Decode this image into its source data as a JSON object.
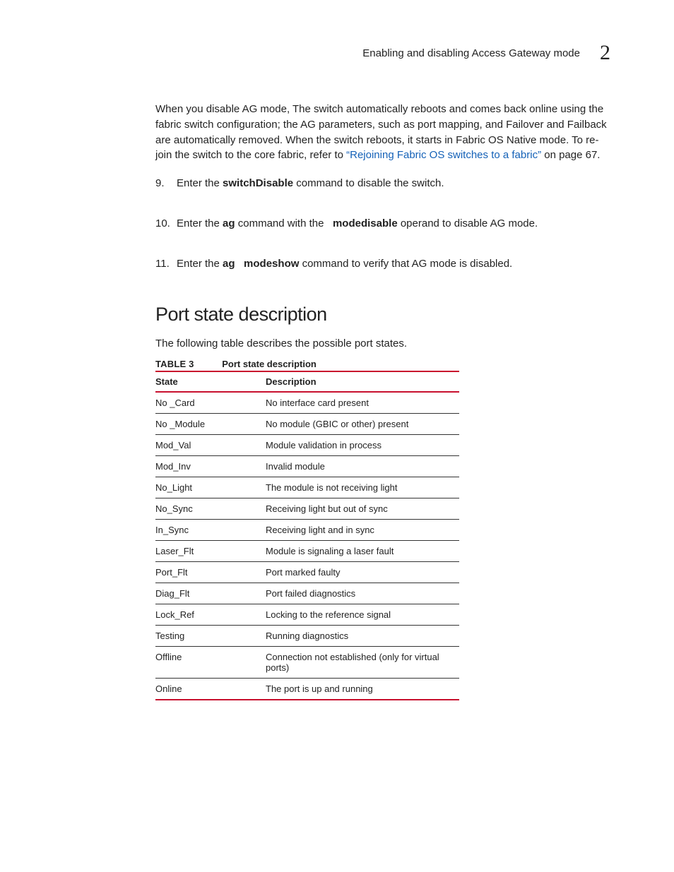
{
  "colors": {
    "rule": "#c8102e",
    "link": "#1461b7",
    "text": "#222222",
    "background": "#ffffff"
  },
  "header": {
    "running_title": "Enabling and disabling Access Gateway mode",
    "chapter_number": "2"
  },
  "intro_para": {
    "pre": "When you disable AG mode, The switch automatically reboots and comes back online using the fabric switch configuration; the AG parameters, such as port mapping, and Failover and Failback are automatically removed. When the switch reboots, it starts in Fabric OS Native mode. To re-join the switch to the core fabric, refer to ",
    "link_text": "“Rejoining Fabric OS switches to a fabric”",
    "post": " on page 67."
  },
  "steps": [
    {
      "num": "9.",
      "parts": [
        {
          "t": "Enter the "
        },
        {
          "t": "switchDisable",
          "bold": true
        },
        {
          "t": " command to disable the switch."
        }
      ]
    },
    {
      "num": "10.",
      "parts": [
        {
          "t": "Enter the "
        },
        {
          "t": "ag",
          "bold": true
        },
        {
          "t": " command with the   "
        },
        {
          "t": "modedisable",
          "bold": true
        },
        {
          "t": " operand to disable AG mode."
        }
      ]
    },
    {
      "num": "11.",
      "parts": [
        {
          "t": "Enter the "
        },
        {
          "t": "ag   modeshow",
          "bold": true
        },
        {
          "t": " command to verify that AG mode is disabled."
        }
      ]
    }
  ],
  "section": {
    "heading": "Port state description",
    "intro": "The following table describes the possible port states.",
    "table_label": "TABLE 3",
    "table_title": "Port state description",
    "columns": [
      "State",
      "Description"
    ],
    "rows": [
      [
        "No _Card",
        "No interface card present"
      ],
      [
        "No _Module",
        "No module (GBIC or other) present"
      ],
      [
        "Mod_Val",
        "Module validation in process"
      ],
      [
        "Mod_Inv",
        "Invalid module"
      ],
      [
        "No_Light",
        "The module is not receiving light"
      ],
      [
        "No_Sync",
        "Receiving light but out of sync"
      ],
      [
        "In_Sync",
        "Receiving light and in sync"
      ],
      [
        "Laser_Flt",
        "Module is signaling a laser fault"
      ],
      [
        "Port_Flt",
        "Port marked faulty"
      ],
      [
        "Diag_Flt",
        "Port failed diagnostics"
      ],
      [
        "Lock_Ref",
        "Locking to the reference signal"
      ],
      [
        "Testing",
        "Running diagnostics"
      ],
      [
        "Offline",
        "Connection not established (only for virtual ports)"
      ],
      [
        "Online",
        "The port is up and running"
      ]
    ]
  }
}
